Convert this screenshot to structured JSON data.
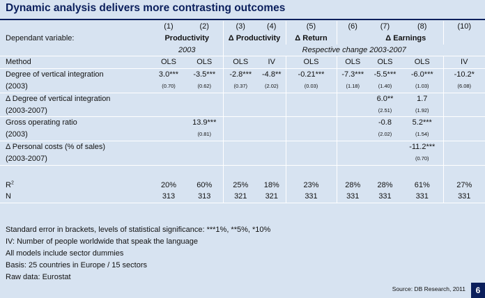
{
  "title": "Dynamic analysis delivers more contrasting outcomes",
  "col_nums": [
    "(1)",
    "(2)",
    "(3)",
    "(4)",
    "(5)",
    "(6)",
    "(7)",
    "(8)",
    "(10)"
  ],
  "dependant_label": "Dependant variable:",
  "groups": {
    "productivity": "Productivity",
    "d_productivity": "Δ Productivity",
    "d_return": "Δ Return",
    "d_earnings": "Δ Earnings"
  },
  "year_label": "2003",
  "resp_change_label": "Respective change 2003-2007",
  "method_label": "Method",
  "methods": [
    "OLS",
    "OLS",
    "OLS",
    "IV",
    "OLS",
    "OLS",
    "OLS",
    "OLS",
    "IV"
  ],
  "rows": {
    "vi": {
      "label": "Degree of vertical integration",
      "sub": "(2003)",
      "vals": [
        "3.0***",
        "-3.5***",
        "-2.8***",
        "-4.8**",
        "-0.21***",
        "-7.3***",
        "-5.5***",
        "-6.0***",
        "-10.2*"
      ],
      "se": [
        "(0.70)",
        "(0.62)",
        "(0.37)",
        "(2.02)",
        "(0.03)",
        "(1.18)",
        "(1.40)",
        "(1.03)",
        "(6.08)"
      ]
    },
    "dvi": {
      "label": "Δ Degree of vertical integration",
      "sub": "(2003-2007)",
      "vals": [
        "6.0**",
        "1.7"
      ],
      "se": [
        "(2.51)",
        "(1.92)"
      ]
    },
    "gor": {
      "label": "Gross operating ratio",
      "sub": "(2003)",
      "val2": "13.9***",
      "se2": "(0.81)",
      "vals": [
        "-0.8",
        "5.2***"
      ],
      "se": [
        "(2.02)",
        "(1.54)"
      ]
    },
    "pc": {
      "label": "Δ Personal costs (% of sales)",
      "sub": "(2003-2007)",
      "val": "-11.2***",
      "se": "(0.70)"
    }
  },
  "r2_label": "R",
  "r2_sup": "2",
  "r2": [
    "20%",
    "60%",
    "25%",
    "18%",
    "23%",
    "28%",
    "28%",
    "61%",
    "27%"
  ],
  "n_label": "N",
  "n": [
    "313",
    "313",
    "321",
    "321",
    "331",
    "331",
    "331",
    "331",
    "331"
  ],
  "notes": [
    "Standard error in brackets, levels of statistical significance: ***1%, **5%, *10%",
    "IV: Number of people worldwide that speak the language",
    "All models include sector dummies",
    "Basis: 25 countries in Europe / 15 sectors",
    "Raw data: Eurostat"
  ],
  "source": "Source: DB Research, 2011",
  "page_number": "6",
  "colors": {
    "background": "#d7e3f1",
    "title": "#0b1f5c",
    "rule": "#ffffff"
  }
}
